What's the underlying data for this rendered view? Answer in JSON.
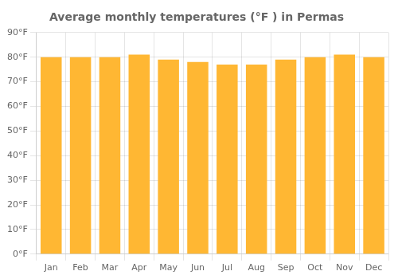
{
  "chart_data": {
    "type": "bar",
    "title": "Average monthly temperatures (°F ) in Permas",
    "categories": [
      "Jan",
      "Feb",
      "Mar",
      "Apr",
      "May",
      "Jun",
      "Jul",
      "Aug",
      "Sep",
      "Oct",
      "Nov",
      "Dec"
    ],
    "values": [
      80,
      80,
      80,
      81,
      79,
      78,
      77,
      77,
      79,
      80,
      81,
      80
    ],
    "color": "#FFB733",
    "ylim": [
      0,
      90
    ],
    "yticks": [
      {
        "value": 0,
        "label": "0°F"
      },
      {
        "value": 10,
        "label": "10°F"
      },
      {
        "value": 20,
        "label": "20°F"
      },
      {
        "value": 30,
        "label": "30°F"
      },
      {
        "value": 40,
        "label": "40°F"
      },
      {
        "value": 50,
        "label": "50°F"
      },
      {
        "value": 60,
        "label": "60°F"
      },
      {
        "value": 70,
        "label": "70°F"
      },
      {
        "value": 80,
        "label": "80°F"
      },
      {
        "value": 90,
        "label": "90°F"
      }
    ],
    "grid": true
  }
}
